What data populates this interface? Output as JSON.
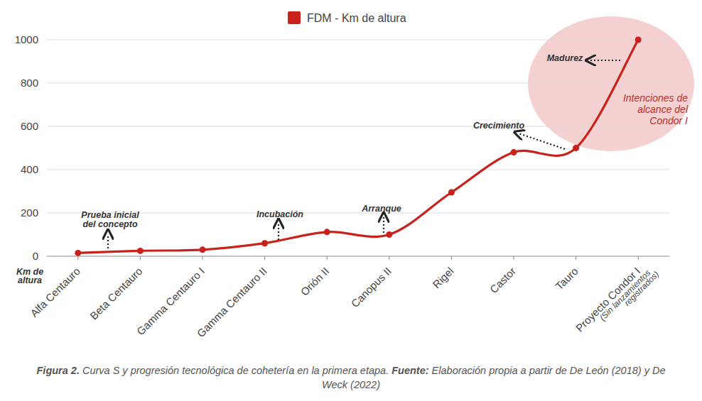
{
  "chart_data": {
    "type": "line",
    "categories": [
      "Alfa Centauro",
      "Beta Centauro",
      "Gamma Centauro I",
      "Gamma Centauro II",
      "Orión II",
      "Canopus II",
      "Rigel",
      "Castor",
      "Tauro",
      "Proyecto Condor I"
    ],
    "series": [
      {
        "name": "FDM - Km de altura",
        "color": "#c8221a",
        "values": [
          15,
          25,
          30,
          60,
          112,
          100,
          295,
          480,
          500,
          1000
        ],
        "marker": "circle"
      }
    ],
    "ylim": [
      0,
      1000
    ],
    "yticks": [
      0,
      200,
      400,
      600,
      800,
      1000
    ],
    "grid": true,
    "legend": "top",
    "y_label": [
      "Km de",
      "altura"
    ],
    "annotations": [
      {
        "text": [
          "Prueba inicial",
          "del concepto"
        ]
      },
      {
        "text": [
          "Incubación"
        ]
      },
      {
        "text": [
          "Arranque"
        ]
      },
      {
        "text": [
          "Crecimiento"
        ]
      },
      {
        "text": [
          "Madurez"
        ]
      },
      {
        "text": [
          "Intenciones de",
          "alcance del",
          "Condor I"
        ]
      },
      {
        "text": [
          "(Sin lanzamientos",
          "registrados)"
        ]
      }
    ],
    "caption": [
      "Figura 2.",
      " Curva S y progresión tecnológica de cohetería en la primera etapa. ",
      "Fuente:",
      " Elaboración propia a partir de De León (2018) y De Weck (2022)"
    ]
  }
}
